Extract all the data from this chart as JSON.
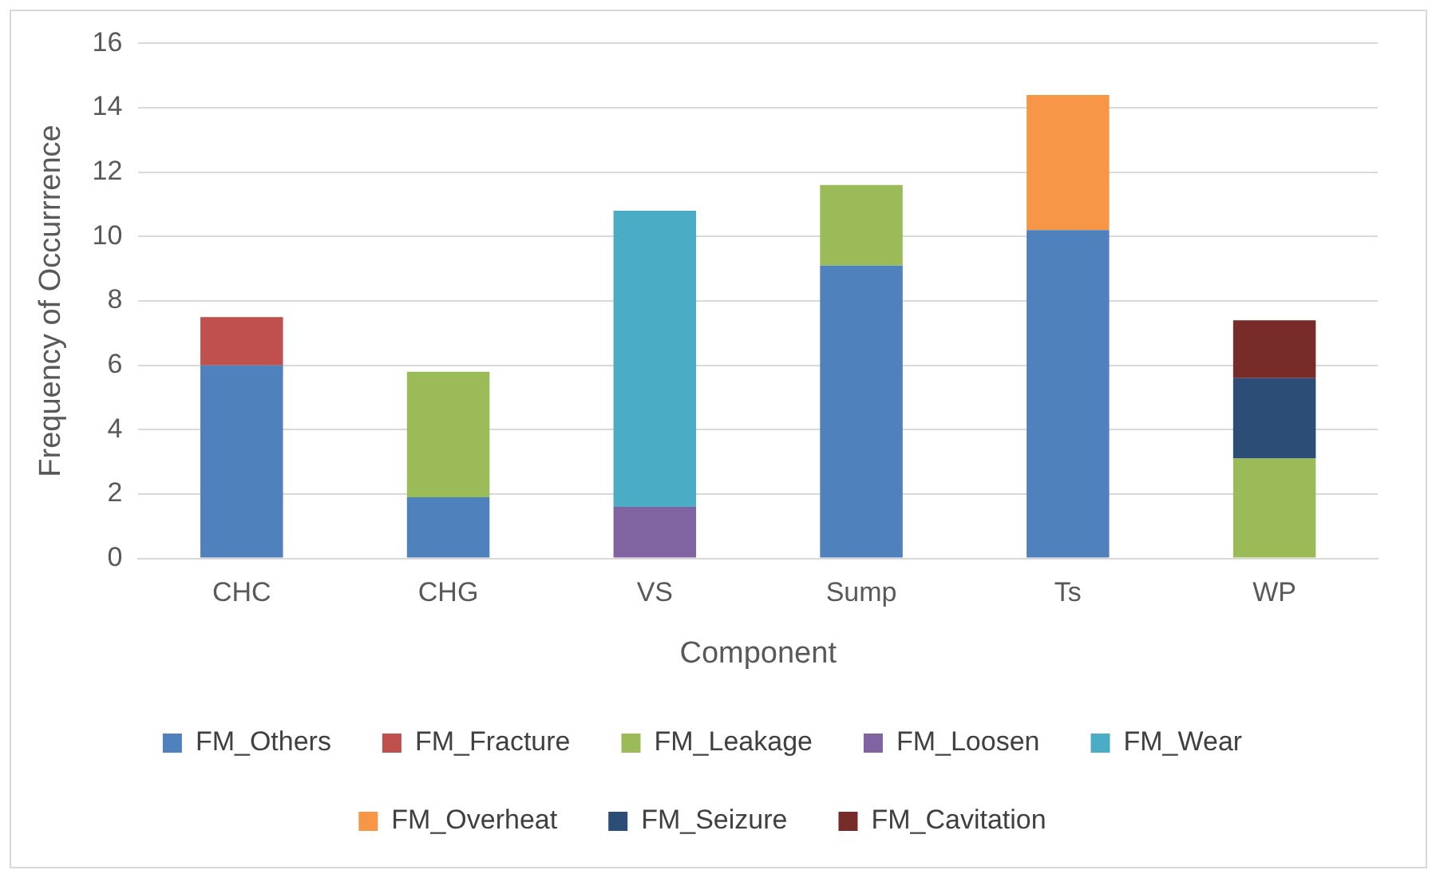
{
  "chart_data": {
    "type": "bar",
    "stacked": true,
    "xlabel": "Component",
    "ylabel": "Frequency of Occurrrence",
    "categories": [
      "CHC",
      "CHG",
      "VS",
      "Sump",
      "Ts",
      "WP"
    ],
    "series": [
      {
        "name": "FM_Others",
        "color": "#4f81bd",
        "values": [
          6,
          1.9,
          null,
          9.1,
          10.2,
          null
        ]
      },
      {
        "name": "FM_Fracture",
        "color": "#c0504d",
        "values": [
          1.5,
          null,
          null,
          null,
          null,
          null
        ]
      },
      {
        "name": "FM_Leakage",
        "color": "#9bbb59",
        "values": [
          null,
          3.9,
          null,
          2.5,
          null,
          3.1
        ]
      },
      {
        "name": "FM_Loosen",
        "color": "#8064a2",
        "values": [
          null,
          null,
          1.6,
          null,
          null,
          null
        ]
      },
      {
        "name": "FM_Wear",
        "color": "#4bacc6",
        "values": [
          null,
          null,
          9.2,
          null,
          null,
          null
        ]
      },
      {
        "name": "FM_Overheat",
        "color": "#f79646",
        "values": [
          null,
          null,
          null,
          null,
          4.2,
          null
        ]
      },
      {
        "name": "FM_Seizure",
        "color": "#2c4d75",
        "values": [
          null,
          null,
          null,
          null,
          null,
          2.5
        ]
      },
      {
        "name": "FM_Cavitation",
        "color": "#772c2a",
        "values": [
          null,
          null,
          null,
          null,
          null,
          1.8
        ]
      }
    ],
    "ylim": [
      0,
      16
    ],
    "yticks": [
      0,
      2,
      4,
      6,
      8,
      10,
      12,
      14,
      16
    ],
    "grid": "y",
    "legend": "bottom"
  }
}
